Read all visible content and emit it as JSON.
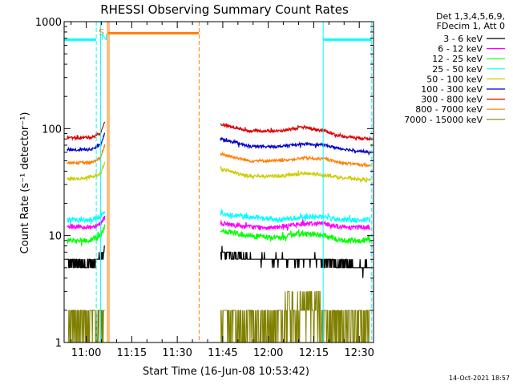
{
  "chart_data": {
    "type": "line",
    "title": "RHESSI Observing Summary Count Rates",
    "xlabel": "Start Time (16-Jun-08 10:53:42)",
    "ylabel": "Count Rate (s⁻¹ detector⁻¹)",
    "yscale": "log",
    "ylim": [
      1,
      1000
    ],
    "xlim_minutes": [
      -1,
      101
    ],
    "x_ticks": [
      {
        "label": "11:00",
        "t": 6.3
      },
      {
        "label": "11:15",
        "t": 21.3
      },
      {
        "label": "11:30",
        "t": 36.3
      },
      {
        "label": "11:45",
        "t": 51.3
      },
      {
        "label": "12:00",
        "t": 66.3
      },
      {
        "label": "12:15",
        "t": 81.3
      },
      {
        "label": "12:30",
        "t": 96.3
      }
    ],
    "y_ticks": [
      {
        "label": "1",
        "v": 1
      },
      {
        "label": "10",
        "v": 10
      },
      {
        "label": "100",
        "v": 100
      },
      {
        "label": "1000",
        "v": 1000
      }
    ],
    "legend_header": [
      "Det 1,3,4,5,6,9,",
      "FDecim 1, Att 0"
    ],
    "legend_position": "right",
    "series": [
      {
        "name": "3 - 6 keV",
        "color": "#000000",
        "before": {
          "t": [
            0,
            4,
            8,
            11,
            12.4
          ],
          "v": [
            5.5,
            5.5,
            5.5,
            6.0,
            7.5
          ]
        },
        "after": {
          "t": [
            50.5,
            60,
            70,
            80,
            90,
            100
          ],
          "v": [
            7.0,
            6.0,
            6.0,
            6.0,
            5.5,
            5.0
          ]
        }
      },
      {
        "name": "6 - 12 keV",
        "color": "#ff00ff",
        "before": {
          "t": [
            0,
            4,
            8,
            11,
            12.4
          ],
          "v": [
            12,
            12,
            12,
            13,
            15
          ]
        },
        "after": {
          "t": [
            50.5,
            60,
            70,
            78,
            85,
            90,
            100
          ],
          "v": [
            13,
            12,
            12,
            13,
            13,
            12,
            12
          ]
        }
      },
      {
        "name": "12 - 25 keV",
        "color": "#00ff00",
        "before": {
          "t": [
            0,
            4,
            8,
            11,
            12.4
          ],
          "v": [
            9,
            9,
            9,
            10,
            12
          ]
        },
        "after": {
          "t": [
            50.5,
            60,
            70,
            78,
            85,
            90,
            100
          ],
          "v": [
            11,
            10,
            9.5,
            10.5,
            10,
            9,
            9
          ]
        }
      },
      {
        "name": "25 - 50 keV",
        "color": "#00ffff",
        "before": {
          "t": [
            0,
            4,
            8,
            11,
            12.4
          ],
          "v": [
            14,
            14,
            14,
            15,
            17
          ]
        },
        "after": {
          "t": [
            50.5,
            60,
            70,
            78,
            85,
            90,
            100
          ],
          "v": [
            16,
            15,
            14,
            15,
            15,
            14,
            14
          ]
        }
      },
      {
        "name": "50 - 100 keV",
        "color": "#cccc00",
        "before": {
          "t": [
            0,
            4,
            8,
            11,
            12.4
          ],
          "v": [
            34,
            34,
            35,
            38,
            48
          ]
        },
        "after": {
          "t": [
            50.5,
            60,
            70,
            78,
            85,
            90,
            100
          ],
          "v": [
            42,
            36,
            36,
            38,
            37,
            35,
            33
          ]
        }
      },
      {
        "name": "100 - 300 keV",
        "color": "#0000cc",
        "before": {
          "t": [
            0,
            4,
            8,
            11,
            12.4
          ],
          "v": [
            64,
            63,
            64,
            70,
            90
          ]
        },
        "after": {
          "t": [
            50.5,
            60,
            70,
            78,
            85,
            90,
            100
          ],
          "v": [
            80,
            68,
            68,
            72,
            70,
            65,
            60
          ]
        }
      },
      {
        "name": "300 - 800 keV",
        "color": "#dd0000",
        "before": {
          "t": [
            0,
            4,
            8,
            11,
            12.4
          ],
          "v": [
            82,
            82,
            83,
            90,
            115
          ]
        },
        "after": {
          "t": [
            50.5,
            60,
            70,
            78,
            85,
            90,
            100
          ],
          "v": [
            110,
            95,
            95,
            103,
            95,
            85,
            80
          ]
        }
      },
      {
        "name": "800 - 7000 keV",
        "color": "#ff7f00",
        "before": {
          "t": [
            0,
            4,
            8,
            11,
            12.4
          ],
          "v": [
            48,
            48,
            48,
            53,
            70
          ]
        },
        "after": {
          "t": [
            50.5,
            60,
            70,
            78,
            85,
            90,
            100
          ],
          "v": [
            58,
            50,
            50,
            53,
            52,
            48,
            45
          ]
        }
      },
      {
        "name": "7000 - 15000 keV",
        "color": "#808000",
        "before": {
          "t": [
            0,
            12.4
          ],
          "v": [
            1.5,
            1.5
          ]
        },
        "after": {
          "t": [
            50.5,
            100
          ],
          "v": [
            1.5,
            1.5
          ]
        }
      }
    ],
    "flags": {
      "night_bars": [
        {
          "t0": -1,
          "t1": 9.6,
          "v": 680
        },
        {
          "t0": 84.4,
          "t1": 100.4,
          "v": 680
        }
      ],
      "night_bar_color": "#00ffff",
      "attenuator_bar": {
        "t0": 13.5,
        "t1": 43.4,
        "v": 780,
        "color": "#ff7f00"
      },
      "vertical_lines": [
        {
          "t": 9.6,
          "color": "#00ffff",
          "style": "dashed"
        },
        {
          "t": 11.0,
          "color": "#00ffff",
          "style": "solid"
        },
        {
          "t": 13.3,
          "color": "#ff7f00",
          "style": "solid"
        },
        {
          "t": 13.8,
          "color": "#ff7f00",
          "style": "solid"
        },
        {
          "t": 43.5,
          "color": "#ff7f00",
          "style": "dashed"
        },
        {
          "t": 84.4,
          "color": "#00ffff",
          "style": "solid"
        },
        {
          "t": 100.4,
          "color": "#00ffff",
          "style": "dashed"
        }
      ],
      "saa_marker": {
        "label": "S",
        "t": 11.3,
        "color": "#ff7f00"
      },
      "night_marker": {
        "label": "N",
        "t": 12.2,
        "color": "#00ffff"
      }
    }
  },
  "footer_date": "14-Oct-2021 18:57"
}
